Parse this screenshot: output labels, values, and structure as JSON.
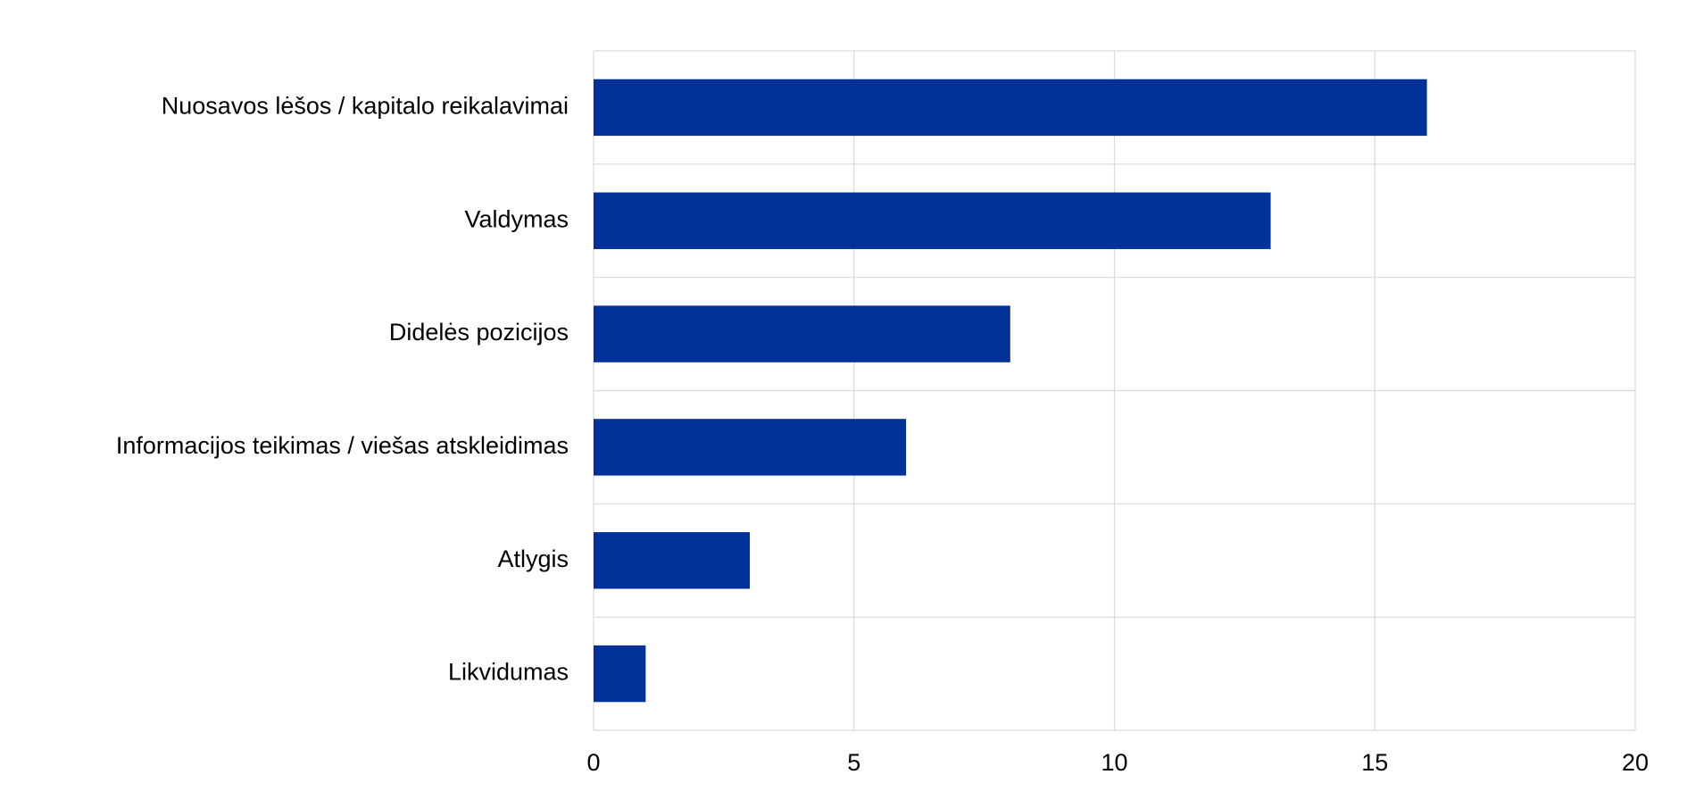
{
  "chart_data": {
    "type": "barh",
    "categories": [
      "Nuosavos lėšos / kapitalo reikalavimai",
      "Valdymas",
      "Didelės pozicijos",
      "Informacijos teikimas / viešas atskleidimas",
      "Atlygis",
      "Likvidumas"
    ],
    "values": [
      16,
      13,
      8,
      6,
      3,
      1
    ],
    "color": "#003299",
    "xlim": [
      0,
      20
    ],
    "xticks": [
      0,
      5,
      10,
      15,
      20
    ],
    "grid": true
  }
}
